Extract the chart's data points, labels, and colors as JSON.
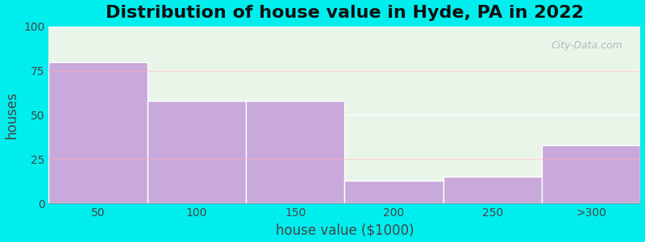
{
  "title": "Distribution of house value in Hyde, PA in 2022",
  "xlabel": "house value ($1000)",
  "ylabel": "houses",
  "categories": [
    "50",
    "100",
    "150",
    "200",
    "250",
    ">300"
  ],
  "values": [
    80,
    58,
    58,
    13,
    15,
    33
  ],
  "bar_color": "#C9A8DC",
  "bg_outer": "#00EEEE",
  "bg_inner_top": "#E8F5E8",
  "bg_inner_bottom": "#F5FFF5",
  "ylim": [
    0,
    100
  ],
  "yticks": [
    0,
    25,
    50,
    75,
    100
  ],
  "title_fontsize": 16,
  "label_fontsize": 12,
  "tick_fontsize": 10,
  "watermark": "City-Data.com",
  "figwidth": 8.0,
  "figheight": 3.0,
  "dpi": 100
}
